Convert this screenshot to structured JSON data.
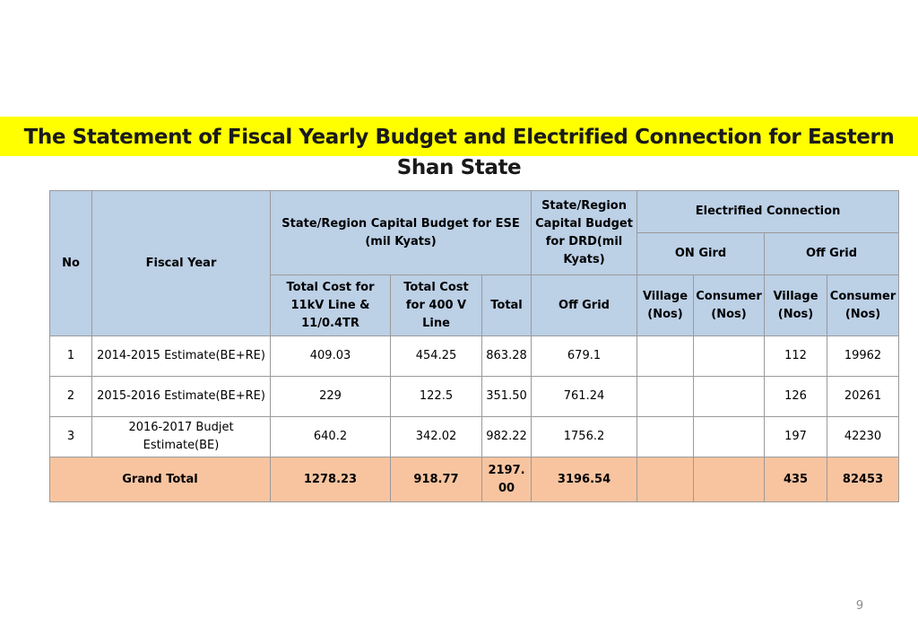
{
  "title": "The Statement of Fiscal Yearly Budget and Electrified Connection for Eastern Shan State",
  "headers": {
    "no": "No",
    "fiscal_year": "Fiscal Year",
    "ese_budget": "State/Region Capital Budget  for ESE (mil Kyats)",
    "drd_budget": "State/Region Capital Budget for DRD(mil Kyats)",
    "electrified": "Electrified Connection",
    "on_grid": "ON Gird",
    "off_grid": "Off Grid",
    "cost_11kv": "Total Cost for 11kV Line & 11/0.4TR",
    "cost_400v": "Total Cost for 400 V Line",
    "total": "Total",
    "drd_off_grid": "Off Grid",
    "on_village": "Village (Nos)",
    "on_consumer": "Consumer (Nos)",
    "off_village": "Village (Nos)",
    "off_consumer": "Consumer (Nos)"
  },
  "rows": [
    {
      "no": "1",
      "year": "2014-2015 Estimate(BE+RE)",
      "cost_11kv": "409.03",
      "cost_400v": "454.25",
      "total": "863.28",
      "drd": "679.1",
      "on_village": "",
      "on_consumer": "",
      "off_village": "112",
      "off_consumer": "19962"
    },
    {
      "no": "2",
      "year": "2015-2016 Estimate(BE+RE)",
      "cost_11kv": "229",
      "cost_400v": "122.5",
      "total": "351.50",
      "drd": "761.24",
      "on_village": "",
      "on_consumer": "",
      "off_village": "126",
      "off_consumer": "20261"
    },
    {
      "no": "3",
      "year": "2016-2017 Budjet Estimate(BE)",
      "cost_11kv": "640.2",
      "cost_400v": "342.02",
      "total": "982.22",
      "drd": "1756.2",
      "on_village": "",
      "on_consumer": "",
      "off_village": "197",
      "off_consumer": "42230"
    }
  ],
  "grand_total": {
    "label": "Grand Total",
    "cost_11kv": "1278.23",
    "cost_400v": "918.77",
    "total": "2197.00",
    "drd": "3196.54",
    "on_village": "",
    "on_consumer": "",
    "off_village": "435",
    "off_consumer": "82453"
  },
  "page_number": "9",
  "colors": {
    "title_highlight": "#ffff00",
    "header_bg": "#bcd0e6",
    "total_bg": "#f8c4a0"
  }
}
